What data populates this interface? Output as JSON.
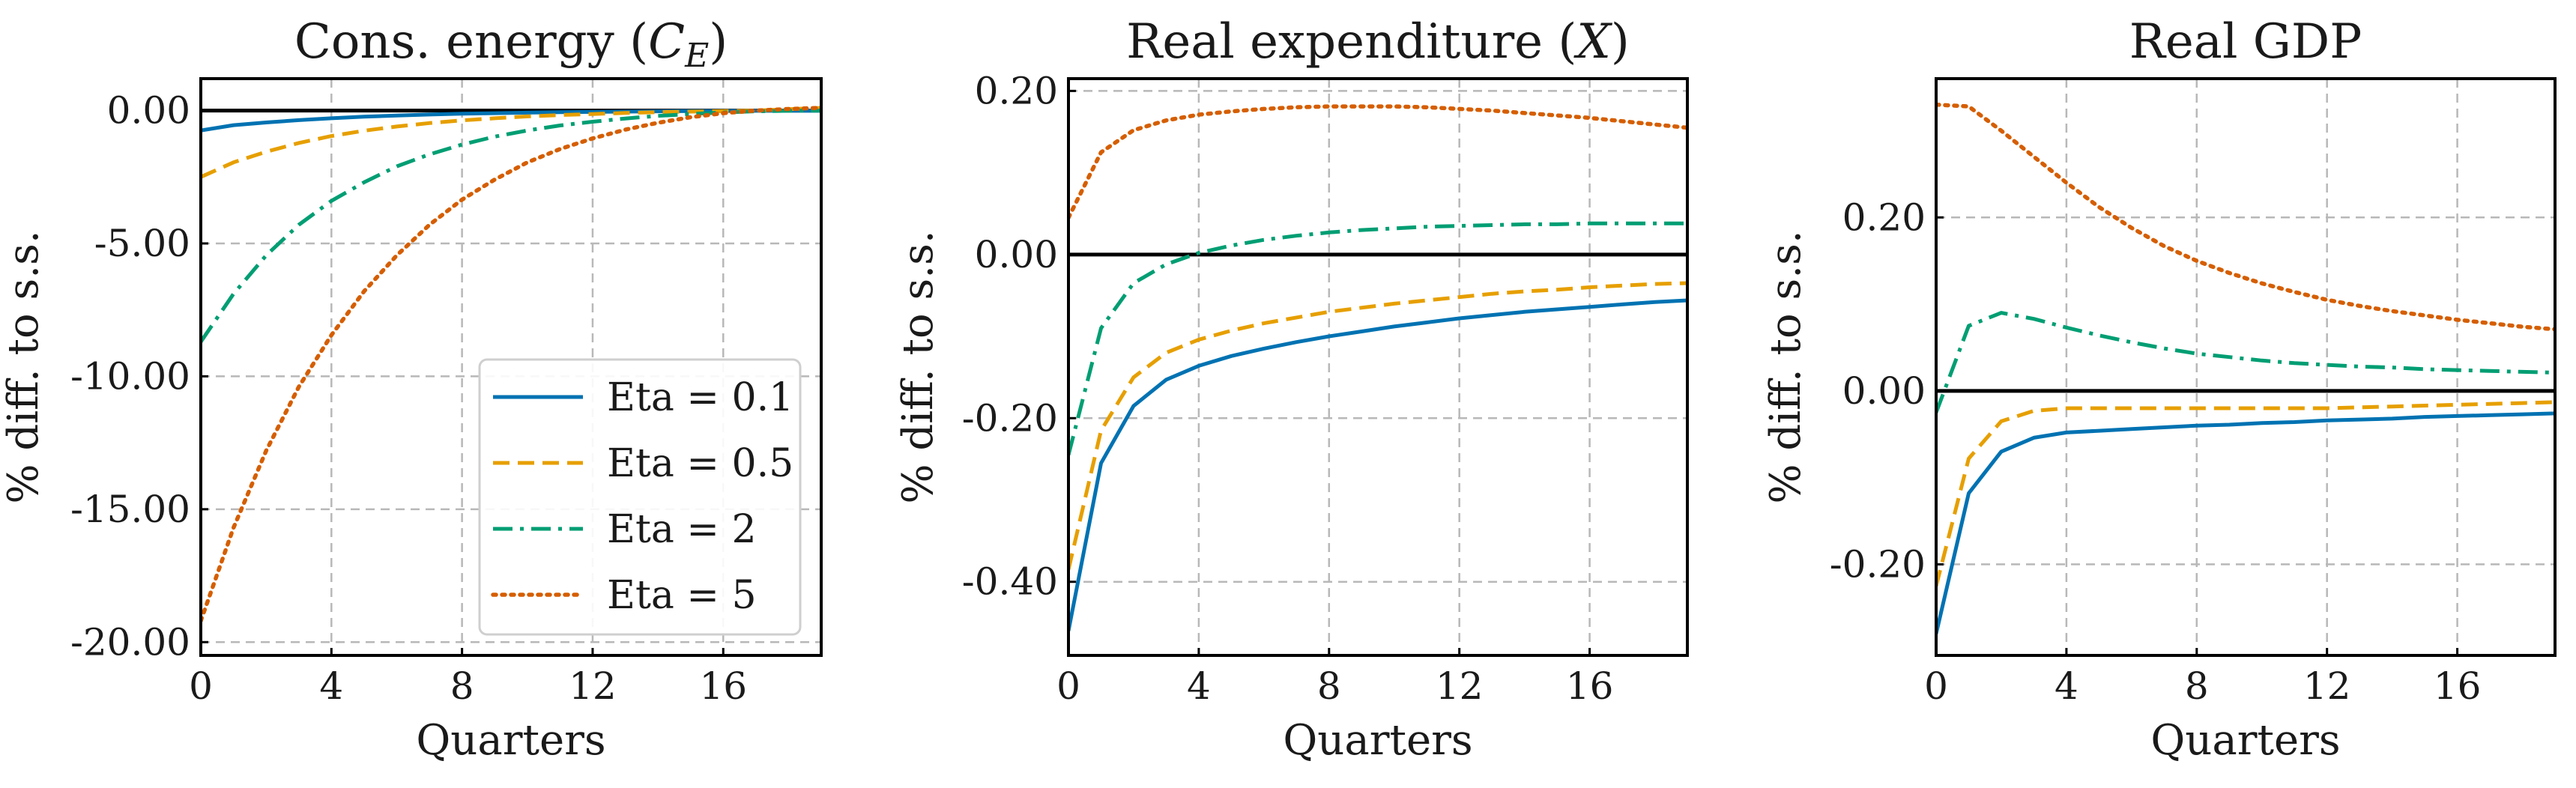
{
  "chart_data": [
    {
      "type": "line",
      "title": "Cons. energy (C_E)",
      "title_main": "Cons. energy (",
      "title_sym": "C",
      "title_sub": "E",
      "title_tail": ")",
      "xlabel": "Quarters",
      "ylabel": "% diff. to s.s.",
      "xlim": [
        0,
        19
      ],
      "ylim": [
        -20.5,
        1.2
      ],
      "xticks": [
        0,
        4,
        8,
        12,
        16
      ],
      "xtick_labels": [
        "0",
        "4",
        "8",
        "12",
        "16"
      ],
      "yticks": [
        0,
        -5,
        -10,
        -15,
        -20
      ],
      "ytick_labels": [
        "0.00",
        "-5.00",
        "-10.00",
        "-15.00",
        "-20.00"
      ],
      "grid": true,
      "zero_line": true,
      "legend": "lower-right",
      "x": [
        0,
        1,
        2,
        3,
        4,
        5,
        6,
        7,
        8,
        9,
        10,
        11,
        12,
        13,
        14,
        15,
        16,
        17,
        18,
        19
      ],
      "series": [
        {
          "name": "Eta = 0.1",
          "color": "#0072B2",
          "style": "solid",
          "values": [
            -0.75,
            -0.55,
            -0.45,
            -0.36,
            -0.29,
            -0.23,
            -0.19,
            -0.15,
            -0.12,
            -0.1,
            -0.08,
            -0.06,
            -0.05,
            -0.04,
            -0.03,
            -0.02,
            -0.02,
            -0.01,
            -0.01,
            -0.01
          ]
        },
        {
          "name": "Eta = 0.5",
          "color": "#E69F00",
          "style": "dashed",
          "values": [
            -2.5,
            -1.95,
            -1.55,
            -1.22,
            -0.96,
            -0.76,
            -0.6,
            -0.47,
            -0.37,
            -0.29,
            -0.22,
            -0.17,
            -0.13,
            -0.09,
            -0.06,
            -0.04,
            -0.02,
            0.0,
            0.05,
            0.1
          ]
        },
        {
          "name": "Eta = 2",
          "color": "#009E73",
          "style": "dashdot",
          "values": [
            -8.7,
            -6.9,
            -5.45,
            -4.3,
            -3.4,
            -2.7,
            -2.1,
            -1.65,
            -1.28,
            -0.98,
            -0.75,
            -0.56,
            -0.42,
            -0.3,
            -0.2,
            -0.13,
            -0.07,
            -0.03,
            -0.01,
            0.0
          ]
        },
        {
          "name": "Eta = 5",
          "color": "#D55E00",
          "style": "dotted",
          "values": [
            -19.2,
            -15.7,
            -12.8,
            -10.4,
            -8.45,
            -6.8,
            -5.45,
            -4.3,
            -3.35,
            -2.6,
            -1.95,
            -1.45,
            -1.05,
            -0.72,
            -0.46,
            -0.25,
            -0.1,
            0.0,
            0.06,
            0.1
          ]
        }
      ]
    },
    {
      "type": "line",
      "title": "Real expenditure (X)",
      "title_main": "Real expenditure (",
      "title_sym": "X",
      "title_sub": "",
      "title_tail": ")",
      "xlabel": "Quarters",
      "ylabel": "% diff. to s.s.",
      "xlim": [
        0,
        19
      ],
      "ylim": [
        -0.49,
        0.215
      ],
      "xticks": [
        0,
        4,
        8,
        12,
        16
      ],
      "xtick_labels": [
        "0",
        "4",
        "8",
        "12",
        "16"
      ],
      "yticks": [
        0.2,
        0,
        -0.2,
        -0.4
      ],
      "ytick_labels": [
        "0.20",
        "0.00",
        "-0.20",
        "-0.40"
      ],
      "grid": true,
      "zero_line": true,
      "x": [
        0,
        1,
        2,
        3,
        4,
        5,
        6,
        7,
        8,
        9,
        10,
        11,
        12,
        13,
        14,
        15,
        16,
        17,
        18,
        19
      ],
      "series": [
        {
          "name": "Eta = 0.1",
          "color": "#0072B2",
          "style": "solid",
          "values": [
            -0.46,
            -0.255,
            -0.185,
            -0.153,
            -0.136,
            -0.124,
            -0.115,
            -0.107,
            -0.1,
            -0.094,
            -0.088,
            -0.083,
            -0.078,
            -0.074,
            -0.07,
            -0.067,
            -0.064,
            -0.061,
            -0.058,
            -0.056
          ]
        },
        {
          "name": "Eta = 0.5",
          "color": "#E69F00",
          "style": "dashed",
          "values": [
            -0.385,
            -0.215,
            -0.15,
            -0.12,
            -0.104,
            -0.093,
            -0.084,
            -0.077,
            -0.07,
            -0.065,
            -0.06,
            -0.056,
            -0.052,
            -0.048,
            -0.045,
            -0.043,
            -0.04,
            -0.038,
            -0.036,
            -0.035
          ]
        },
        {
          "name": "Eta = 2",
          "color": "#009E73",
          "style": "dashdot",
          "values": [
            -0.245,
            -0.09,
            -0.035,
            -0.012,
            0.002,
            0.011,
            0.018,
            0.023,
            0.027,
            0.03,
            0.032,
            0.034,
            0.035,
            0.036,
            0.037,
            0.037,
            0.038,
            0.038,
            0.038,
            0.038
          ]
        },
        {
          "name": "Eta = 5",
          "color": "#D55E00",
          "style": "dotted",
          "values": [
            0.045,
            0.125,
            0.152,
            0.164,
            0.171,
            0.175,
            0.178,
            0.18,
            0.181,
            0.181,
            0.181,
            0.18,
            0.178,
            0.176,
            0.173,
            0.17,
            0.167,
            0.163,
            0.159,
            0.155
          ]
        }
      ]
    },
    {
      "type": "line",
      "title": "Real GDP",
      "title_main": "Real GDP",
      "title_sym": "",
      "title_sub": "",
      "title_tail": "",
      "xlabel": "Quarters",
      "ylabel": "% diff. to s.s.",
      "xlim": [
        0,
        19
      ],
      "ylim": [
        -0.305,
        0.36
      ],
      "xticks": [
        0,
        4,
        8,
        12,
        16
      ],
      "xtick_labels": [
        "0",
        "4",
        "8",
        "12",
        "16"
      ],
      "yticks": [
        0.2,
        0,
        -0.2
      ],
      "ytick_labels": [
        "0.20",
        "0.00",
        "-0.20"
      ],
      "grid": true,
      "zero_line": true,
      "x": [
        0,
        1,
        2,
        3,
        4,
        5,
        6,
        7,
        8,
        9,
        10,
        11,
        12,
        13,
        14,
        15,
        16,
        17,
        18,
        19
      ],
      "series": [
        {
          "name": "Eta = 0.1",
          "color": "#0072B2",
          "style": "solid",
          "values": [
            -0.28,
            -0.118,
            -0.07,
            -0.054,
            -0.048,
            -0.046,
            -0.044,
            -0.042,
            -0.04,
            -0.039,
            -0.037,
            -0.036,
            -0.034,
            -0.033,
            -0.032,
            -0.03,
            -0.029,
            -0.028,
            -0.027,
            -0.026
          ]
        },
        {
          "name": "Eta = 0.5",
          "color": "#E69F00",
          "style": "dashed",
          "values": [
            -0.225,
            -0.078,
            -0.035,
            -0.023,
            -0.02,
            -0.02,
            -0.02,
            -0.02,
            -0.02,
            -0.02,
            -0.02,
            -0.02,
            -0.02,
            -0.019,
            -0.018,
            -0.017,
            -0.016,
            -0.015,
            -0.014,
            -0.013
          ]
        },
        {
          "name": "Eta = 2",
          "color": "#009E73",
          "style": "dashdot",
          "values": [
            -0.025,
            0.075,
            0.09,
            0.083,
            0.073,
            0.064,
            0.056,
            0.049,
            0.043,
            0.039,
            0.035,
            0.032,
            0.03,
            0.028,
            0.027,
            0.025,
            0.024,
            0.023,
            0.022,
            0.021
          ]
        },
        {
          "name": "Eta = 5",
          "color": "#D55E00",
          "style": "dotted",
          "values": [
            0.33,
            0.328,
            0.3,
            0.27,
            0.24,
            0.212,
            0.188,
            0.167,
            0.15,
            0.136,
            0.124,
            0.114,
            0.105,
            0.098,
            0.092,
            0.087,
            0.082,
            0.078,
            0.074,
            0.071
          ]
        }
      ]
    }
  ]
}
